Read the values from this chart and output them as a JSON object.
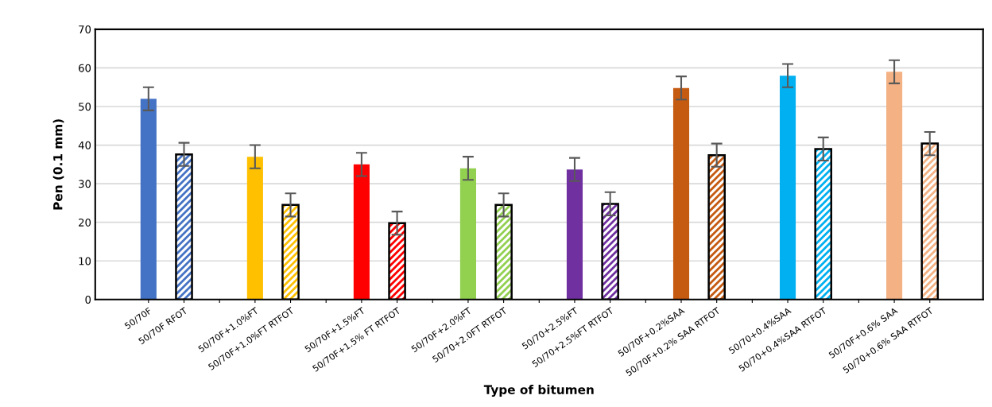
{
  "chart_data": {
    "type": "bar",
    "xlabel": "Type of bitumen",
    "ylabel": "Pen (0.1 mm)",
    "categories": [
      "50/70F",
      "50/70F RFOT",
      null,
      "50/70F+1.0%FT",
      "50/70F+1.0%FT RTFOT",
      null,
      "50/70F+1.5%FT",
      "50/70F+1.5% FT RTFOT",
      null,
      "50/70F+2.0%FT",
      "50/70+2.0FT RTFOT",
      null,
      "50/70+2.5%FT",
      "50/70+2.5%FT RTFOT",
      null,
      "50/70F+0.2%SAA",
      "50/70F+0.2% SAA RTFOT",
      null,
      "50/70+0.4%SAA",
      "50/70+0.4%SAA RTFOT",
      null,
      "50/70F+0.6% SAA",
      "50/70+0.6% SAA RTFOT"
    ],
    "series": [
      {
        "colors": [
          "#4472c4",
          null,
          null,
          "#ffc000",
          null,
          null,
          "#ff0000",
          null,
          null,
          "#92d050",
          null,
          null,
          "#7030a0",
          null,
          null,
          "#c55a11",
          null,
          null,
          "#00b0f0",
          null,
          null,
          "#f4b183",
          null
        ],
        "values": [
          52,
          null,
          null,
          37,
          null,
          null,
          35,
          null,
          null,
          34,
          null,
          null,
          33.7,
          null,
          null,
          54.8,
          null,
          null,
          58,
          null,
          null,
          59,
          null
        ],
        "errors": [
          3,
          null,
          null,
          3,
          null,
          null,
          3,
          null,
          null,
          3,
          null,
          null,
          3,
          null,
          null,
          3,
          null,
          null,
          3,
          null,
          null,
          3,
          null
        ]
      },
      {
        "colors": [
          null,
          "#4472c4",
          null,
          null,
          "#ffc000",
          null,
          null,
          "#ff0000",
          null,
          null,
          "#92d050",
          null,
          null,
          "#7030a0",
          null,
          null,
          "#c55a11",
          null,
          null,
          "#00b0f0",
          null,
          null,
          "#f4b183"
        ],
        "values": [
          null,
          37.6,
          null,
          null,
          24.5,
          null,
          null,
          19.8,
          null,
          null,
          24.5,
          null,
          null,
          24.8,
          null,
          null,
          37.4,
          null,
          null,
          39,
          null,
          null,
          40.4
        ],
        "errors": [
          null,
          3,
          null,
          null,
          3,
          null,
          null,
          3,
          null,
          null,
          3,
          null,
          null,
          3,
          null,
          null,
          3,
          null,
          null,
          3,
          null,
          null,
          3
        ]
      }
    ],
    "ylim": [
      0,
      70
    ],
    "yticks": [
      0,
      10,
      20,
      30,
      40,
      50,
      60,
      70
    ],
    "grid": "y",
    "legend": false
  }
}
